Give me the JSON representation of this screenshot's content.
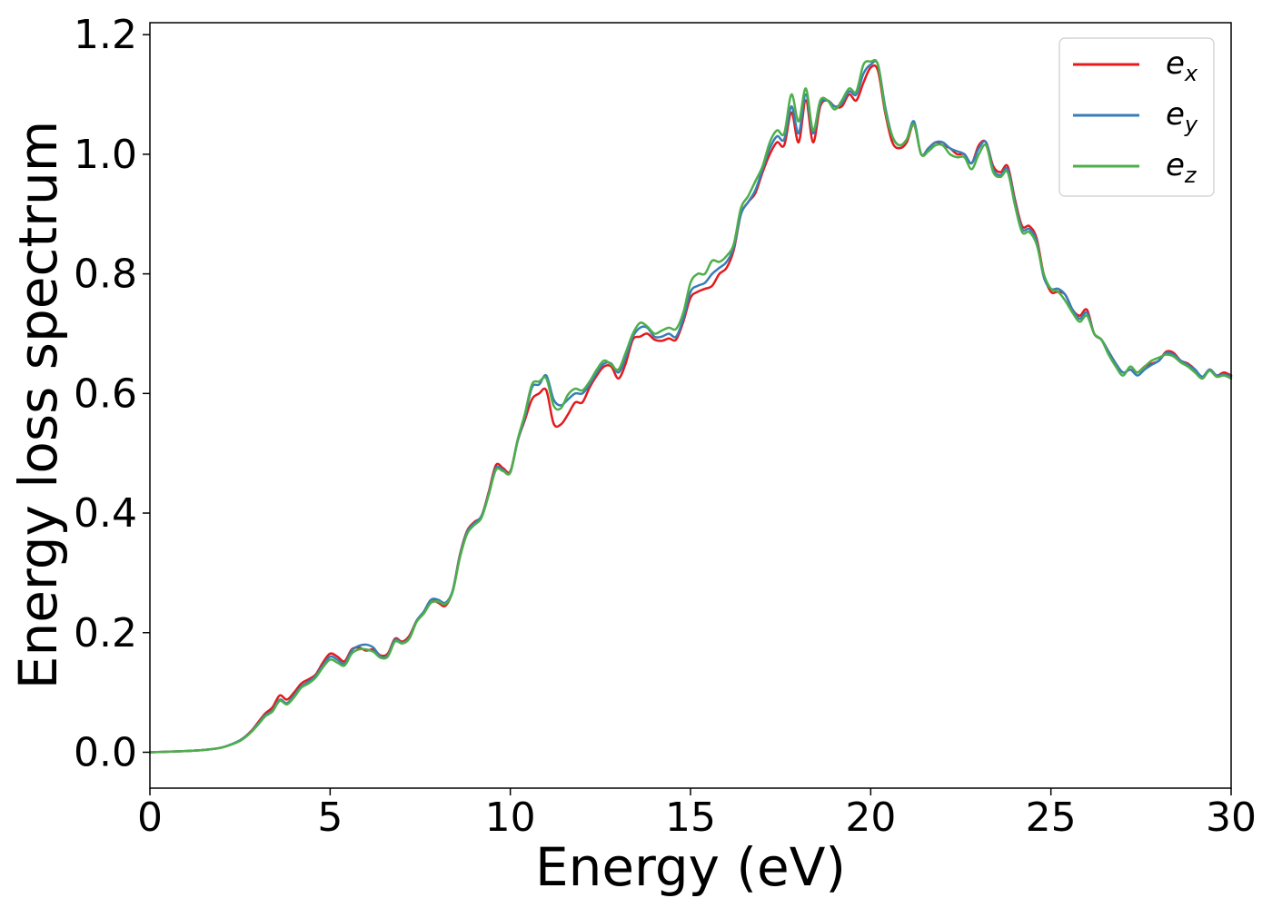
{
  "chart_data": {
    "type": "line",
    "xlabel": "Energy (eV)",
    "ylabel": "Energy loss spectrum",
    "xlim": [
      0,
      30
    ],
    "ylim": [
      -0.06,
      1.22
    ],
    "xticks": [
      0,
      5,
      10,
      15,
      20,
      25,
      30
    ],
    "xtick_labels": [
      "0",
      "5",
      "10",
      "15",
      "20",
      "25",
      "30"
    ],
    "yticks": [
      0.0,
      0.2,
      0.4,
      0.6,
      0.8,
      1.0,
      1.2
    ],
    "ytick_labels": [
      "0.0",
      "0.2",
      "0.4",
      "0.6",
      "0.8",
      "1.0",
      "1.2"
    ],
    "grid": false,
    "legend_position": "top-right",
    "series": [
      {
        "name": "e_x",
        "label_base": "e",
        "label_sub": "x",
        "color": "#e41a1c",
        "x": [
          0,
          0.5,
          1,
          1.5,
          2,
          2.5,
          2.8,
          3,
          3.2,
          3.4,
          3.6,
          3.8,
          4,
          4.2,
          4.4,
          4.6,
          4.8,
          5,
          5.2,
          5.4,
          5.6,
          5.8,
          6,
          6.2,
          6.4,
          6.6,
          6.8,
          7,
          7.2,
          7.4,
          7.6,
          7.8,
          8,
          8.2,
          8.4,
          8.6,
          8.8,
          9,
          9.2,
          9.4,
          9.6,
          9.8,
          10,
          10.2,
          10.4,
          10.6,
          10.8,
          11,
          11.2,
          11.4,
          11.6,
          11.8,
          12,
          12.2,
          12.4,
          12.6,
          12.8,
          13,
          13.2,
          13.4,
          13.6,
          13.8,
          14,
          14.2,
          14.4,
          14.6,
          14.8,
          15,
          15.2,
          15.4,
          15.6,
          15.8,
          16,
          16.2,
          16.4,
          16.6,
          16.8,
          17,
          17.2,
          17.4,
          17.6,
          17.8,
          18,
          18.2,
          18.4,
          18.6,
          18.8,
          19,
          19.2,
          19.4,
          19.6,
          19.8,
          20,
          20.2,
          20.4,
          20.6,
          20.8,
          21,
          21.2,
          21.4,
          21.6,
          21.8,
          22,
          22.2,
          22.4,
          22.6,
          22.8,
          23,
          23.2,
          23.4,
          23.6,
          23.8,
          24,
          24.2,
          24.4,
          24.6,
          24.8,
          25,
          25.2,
          25.4,
          25.6,
          25.8,
          26,
          26.2,
          26.4,
          26.6,
          26.8,
          27,
          27.2,
          27.4,
          27.6,
          27.8,
          28,
          28.2,
          28.4,
          28.6,
          28.8,
          29,
          29.2,
          29.4,
          29.6,
          29.8,
          30
        ],
        "y": [
          0,
          0.001,
          0.002,
          0.004,
          0.008,
          0.02,
          0.035,
          0.05,
          0.065,
          0.075,
          0.095,
          0.088,
          0.1,
          0.115,
          0.122,
          0.13,
          0.15,
          0.165,
          0.16,
          0.152,
          0.172,
          0.175,
          0.17,
          0.172,
          0.162,
          0.165,
          0.19,
          0.185,
          0.195,
          0.22,
          0.235,
          0.255,
          0.25,
          0.245,
          0.27,
          0.33,
          0.37,
          0.385,
          0.395,
          0.435,
          0.48,
          0.475,
          0.47,
          0.52,
          0.555,
          0.59,
          0.6,
          0.605,
          0.55,
          0.548,
          0.565,
          0.585,
          0.585,
          0.61,
          0.63,
          0.645,
          0.645,
          0.625,
          0.65,
          0.69,
          0.695,
          0.7,
          0.69,
          0.688,
          0.692,
          0.69,
          0.72,
          0.76,
          0.77,
          0.775,
          0.78,
          0.8,
          0.81,
          0.84,
          0.9,
          0.92,
          0.935,
          0.97,
          1.0,
          1.02,
          1.015,
          1.07,
          1.02,
          1.09,
          1.02,
          1.08,
          1.09,
          1.08,
          1.08,
          1.1,
          1.09,
          1.12,
          1.145,
          1.14,
          1.07,
          1.02,
          1.01,
          1.02,
          1.05,
          1.0,
          1.01,
          1.02,
          1.015,
          1.01,
          1.0,
          1.0,
          0.985,
          1.015,
          1.02,
          0.98,
          0.97,
          0.98,
          0.925,
          0.88,
          0.88,
          0.86,
          0.8,
          0.77,
          0.77,
          0.765,
          0.74,
          0.73,
          0.74,
          0.7,
          0.69,
          0.67,
          0.65,
          0.635,
          0.64,
          0.635,
          0.645,
          0.65,
          0.655,
          0.67,
          0.668,
          0.655,
          0.65,
          0.64,
          0.625,
          0.64,
          0.63,
          0.635,
          0.63
        ]
      },
      {
        "name": "e_y",
        "label_base": "e",
        "label_sub": "y",
        "color": "#377eb8",
        "x": [
          0,
          0.5,
          1,
          1.5,
          2,
          2.5,
          2.8,
          3,
          3.2,
          3.4,
          3.6,
          3.8,
          4,
          4.2,
          4.4,
          4.6,
          4.8,
          5,
          5.2,
          5.4,
          5.6,
          5.8,
          6,
          6.2,
          6.4,
          6.6,
          6.8,
          7,
          7.2,
          7.4,
          7.6,
          7.8,
          8,
          8.2,
          8.4,
          8.6,
          8.8,
          9,
          9.2,
          9.4,
          9.6,
          9.8,
          10,
          10.2,
          10.4,
          10.6,
          10.8,
          11,
          11.2,
          11.4,
          11.6,
          11.8,
          12,
          12.2,
          12.4,
          12.6,
          12.8,
          13,
          13.2,
          13.4,
          13.6,
          13.8,
          14,
          14.2,
          14.4,
          14.6,
          14.8,
          15,
          15.2,
          15.4,
          15.6,
          15.8,
          16,
          16.2,
          16.4,
          16.6,
          16.8,
          17,
          17.2,
          17.4,
          17.6,
          17.8,
          18,
          18.2,
          18.4,
          18.6,
          18.8,
          19,
          19.2,
          19.4,
          19.6,
          19.8,
          20,
          20.2,
          20.4,
          20.6,
          20.8,
          21,
          21.2,
          21.4,
          21.6,
          21.8,
          22,
          22.2,
          22.4,
          22.6,
          22.8,
          23,
          23.2,
          23.4,
          23.6,
          23.8,
          24,
          24.2,
          24.4,
          24.6,
          24.8,
          25,
          25.2,
          25.4,
          25.6,
          25.8,
          26,
          26.2,
          26.4,
          26.6,
          26.8,
          27,
          27.2,
          27.4,
          27.6,
          27.8,
          28,
          28.2,
          28.4,
          28.6,
          28.8,
          29,
          29.2,
          29.4,
          29.6,
          29.8,
          30
        ],
        "y": [
          0,
          0.001,
          0.002,
          0.004,
          0.008,
          0.02,
          0.034,
          0.048,
          0.062,
          0.07,
          0.088,
          0.082,
          0.095,
          0.11,
          0.118,
          0.128,
          0.145,
          0.16,
          0.155,
          0.148,
          0.17,
          0.178,
          0.18,
          0.175,
          0.16,
          0.162,
          0.188,
          0.183,
          0.192,
          0.22,
          0.235,
          0.255,
          0.255,
          0.25,
          0.27,
          0.328,
          0.368,
          0.383,
          0.395,
          0.432,
          0.475,
          0.472,
          0.468,
          0.52,
          0.56,
          0.61,
          0.615,
          0.63,
          0.59,
          0.58,
          0.59,
          0.6,
          0.6,
          0.615,
          0.635,
          0.65,
          0.65,
          0.635,
          0.66,
          0.695,
          0.71,
          0.71,
          0.695,
          0.695,
          0.7,
          0.695,
          0.725,
          0.77,
          0.78,
          0.785,
          0.8,
          0.81,
          0.82,
          0.845,
          0.9,
          0.92,
          0.94,
          0.975,
          1.01,
          1.03,
          1.025,
          1.08,
          1.035,
          1.1,
          1.035,
          1.085,
          1.09,
          1.08,
          1.085,
          1.105,
          1.1,
          1.135,
          1.15,
          1.15,
          1.08,
          1.03,
          1.015,
          1.025,
          1.055,
          1.0,
          1.01,
          1.02,
          1.02,
          1.01,
          1.005,
          1.0,
          0.985,
          1.01,
          1.02,
          0.975,
          0.965,
          0.975,
          0.92,
          0.875,
          0.875,
          0.855,
          0.795,
          0.775,
          0.775,
          0.765,
          0.74,
          0.725,
          0.735,
          0.7,
          0.69,
          0.67,
          0.65,
          0.635,
          0.64,
          0.63,
          0.64,
          0.648,
          0.655,
          0.668,
          0.665,
          0.655,
          0.648,
          0.64,
          0.628,
          0.64,
          0.63,
          0.632,
          0.628
        ]
      },
      {
        "name": "e_z",
        "label_base": "e",
        "label_sub": "z",
        "color": "#4daf4a",
        "x": [
          0,
          0.5,
          1,
          1.5,
          2,
          2.5,
          2.8,
          3,
          3.2,
          3.4,
          3.6,
          3.8,
          4,
          4.2,
          4.4,
          4.6,
          4.8,
          5,
          5.2,
          5.4,
          5.6,
          5.8,
          6,
          6.2,
          6.4,
          6.6,
          6.8,
          7,
          7.2,
          7.4,
          7.6,
          7.8,
          8,
          8.2,
          8.4,
          8.6,
          8.8,
          9,
          9.2,
          9.4,
          9.6,
          9.8,
          10,
          10.2,
          10.4,
          10.6,
          10.8,
          11,
          11.2,
          11.4,
          11.6,
          11.8,
          12,
          12.2,
          12.4,
          12.6,
          12.8,
          13,
          13.2,
          13.4,
          13.6,
          13.8,
          14,
          14.2,
          14.4,
          14.6,
          14.8,
          15,
          15.2,
          15.4,
          15.6,
          15.8,
          16,
          16.2,
          16.4,
          16.6,
          16.8,
          17,
          17.2,
          17.4,
          17.6,
          17.8,
          18,
          18.2,
          18.4,
          18.6,
          18.8,
          19,
          19.2,
          19.4,
          19.6,
          19.8,
          20,
          20.2,
          20.4,
          20.6,
          20.8,
          21,
          21.2,
          21.4,
          21.6,
          21.8,
          22,
          22.2,
          22.4,
          22.6,
          22.8,
          23,
          23.2,
          23.4,
          23.6,
          23.8,
          24,
          24.2,
          24.4,
          24.6,
          24.8,
          25,
          25.2,
          25.4,
          25.6,
          25.8,
          26,
          26.2,
          26.4,
          26.6,
          26.8,
          27,
          27.2,
          27.4,
          27.6,
          27.8,
          28,
          28.2,
          28.4,
          28.6,
          28.8,
          29,
          29.2,
          29.4,
          29.6,
          29.8,
          30
        ],
        "y": [
          0,
          0.001,
          0.002,
          0.004,
          0.008,
          0.019,
          0.033,
          0.046,
          0.06,
          0.068,
          0.086,
          0.08,
          0.092,
          0.108,
          0.115,
          0.125,
          0.142,
          0.155,
          0.15,
          0.145,
          0.165,
          0.172,
          0.172,
          0.168,
          0.158,
          0.16,
          0.185,
          0.182,
          0.19,
          0.218,
          0.232,
          0.25,
          0.252,
          0.248,
          0.268,
          0.325,
          0.365,
          0.38,
          0.392,
          0.43,
          0.472,
          0.47,
          0.468,
          0.522,
          0.565,
          0.615,
          0.62,
          0.625,
          0.58,
          0.575,
          0.598,
          0.608,
          0.605,
          0.62,
          0.64,
          0.655,
          0.648,
          0.64,
          0.668,
          0.7,
          0.718,
          0.712,
          0.7,
          0.705,
          0.71,
          0.708,
          0.735,
          0.785,
          0.8,
          0.8,
          0.822,
          0.82,
          0.83,
          0.85,
          0.91,
          0.93,
          0.955,
          0.98,
          1.02,
          1.04,
          1.035,
          1.1,
          1.055,
          1.11,
          1.04,
          1.09,
          1.09,
          1.075,
          1.09,
          1.11,
          1.105,
          1.15,
          1.155,
          1.15,
          1.075,
          1.03,
          1.015,
          1.025,
          1.05,
          1.0,
          1.005,
          1.015,
          1.015,
          1.0,
          0.995,
          0.995,
          0.975,
          1.0,
          1.015,
          0.97,
          0.962,
          0.97,
          0.915,
          0.87,
          0.87,
          0.85,
          0.8,
          0.775,
          0.77,
          0.755,
          0.735,
          0.72,
          0.73,
          0.7,
          0.69,
          0.665,
          0.645,
          0.63,
          0.645,
          0.635,
          0.645,
          0.655,
          0.66,
          0.665,
          0.662,
          0.652,
          0.645,
          0.635,
          0.625,
          0.638,
          0.628,
          0.63,
          0.625
        ]
      }
    ]
  }
}
